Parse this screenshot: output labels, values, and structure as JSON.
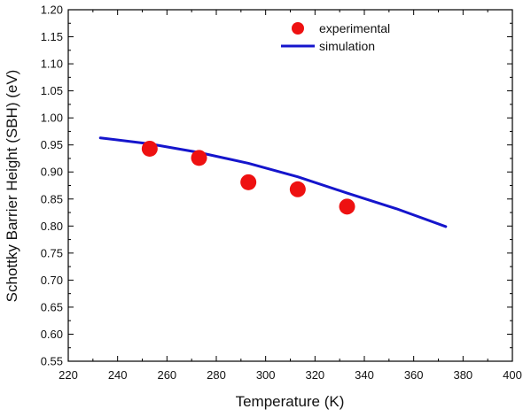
{
  "chart_data": {
    "type": "scatter",
    "title": "",
    "xlabel": "Temperature (K)",
    "ylabel": "Schottky Barrier Height (SBH) (eV)",
    "xlim": [
      220,
      400
    ],
    "ylim": [
      0.55,
      1.2
    ],
    "x_ticks": [
      220,
      240,
      260,
      280,
      300,
      320,
      340,
      360,
      380,
      400
    ],
    "x_tick_labels": [
      "220",
      "240",
      "260",
      "280",
      "300",
      "320",
      "340",
      "360",
      "380",
      "400"
    ],
    "y_ticks": [
      0.55,
      0.6,
      0.65,
      0.7,
      0.75,
      0.8,
      0.85,
      0.9,
      0.95,
      1.0,
      1.05,
      1.1,
      1.15,
      1.2
    ],
    "y_tick_labels": [
      "0.55",
      "0.60",
      "0.65",
      "0.70",
      "0.75",
      "0.80",
      "0.85",
      "0.90",
      "0.95",
      "1.00",
      "1.05",
      "1.10",
      "1.15",
      "1.20"
    ],
    "grid": false,
    "legend_position": "top-center",
    "series": [
      {
        "name": "experimental",
        "type": "scatter",
        "color": "#ee1111",
        "marker": "circle",
        "x": [
          253,
          273,
          293,
          313,
          333
        ],
        "y": [
          0.943,
          0.926,
          0.881,
          0.868,
          0.836
        ]
      },
      {
        "name": "simulation",
        "type": "line",
        "color": "#1515cc",
        "x": [
          233,
          253,
          273,
          293,
          313,
          333,
          353,
          373
        ],
        "y": [
          0.963,
          0.952,
          0.936,
          0.916,
          0.891,
          0.861,
          0.832,
          0.799
        ]
      }
    ]
  }
}
